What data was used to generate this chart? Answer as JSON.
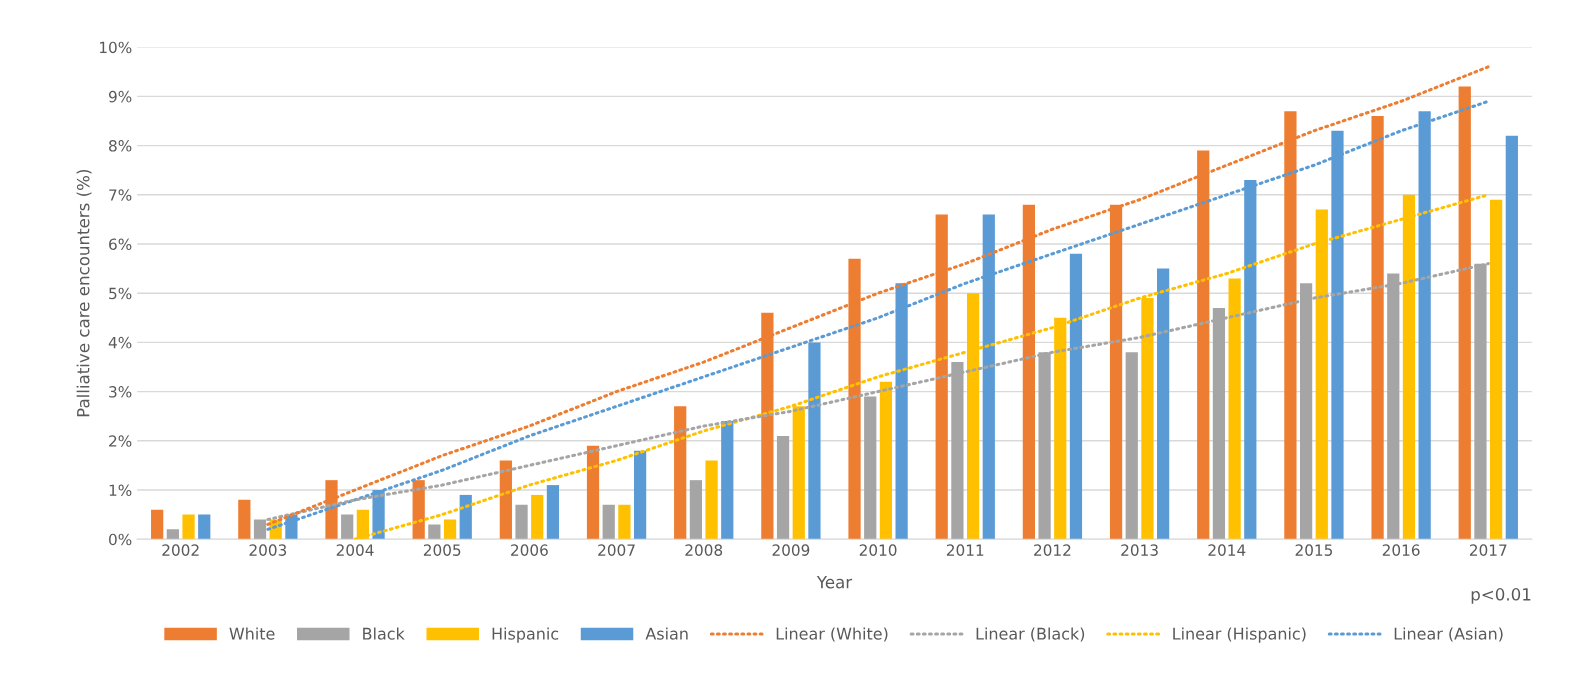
{
  "chart_data": {
    "type": "bar",
    "xlabel": "Year",
    "ylabel": "Palliative care encounters (%)",
    "categories": [
      "2002",
      "2003",
      "2004",
      "2005",
      "2006",
      "2007",
      "2008",
      "2009",
      "2010",
      "2011",
      "2012",
      "2013",
      "2014",
      "2015",
      "2016",
      "2017"
    ],
    "series": [
      {
        "name": "White",
        "color": "#ed7d31",
        "values": [
          0.6,
          0.8,
          1.2,
          1.2,
          1.6,
          1.9,
          2.7,
          4.6,
          5.7,
          6.6,
          6.8,
          6.8,
          7.9,
          8.7,
          8.6,
          9.2
        ]
      },
      {
        "name": "Black",
        "color": "#a5a5a5",
        "values": [
          0.2,
          0.4,
          0.5,
          0.3,
          0.7,
          0.7,
          1.2,
          2.1,
          2.9,
          3.6,
          3.8,
          3.8,
          4.7,
          5.2,
          5.4,
          5.6
        ]
      },
      {
        "name": "Hispanic",
        "color": "#ffc000",
        "values": [
          0.5,
          0.4,
          0.6,
          0.4,
          0.9,
          0.7,
          1.6,
          2.7,
          3.2,
          5.0,
          4.5,
          4.9,
          5.3,
          6.7,
          7.0,
          6.9
        ]
      },
      {
        "name": "Asian",
        "color": "#5b9bd5",
        "values": [
          0.5,
          0.5,
          1.0,
          0.9,
          1.1,
          1.8,
          2.4,
          4.0,
          5.2,
          6.6,
          5.8,
          5.5,
          7.3,
          8.3,
          8.7,
          8.2
        ]
      },
      {
        "name": "Linear (White)",
        "type": "line",
        "line_style": "dotted",
        "color": "#ed7d31",
        "values": [
          null,
          0.3,
          1.0,
          1.7,
          2.3,
          3.0,
          3.6,
          4.3,
          5.0,
          5.6,
          6.3,
          6.9,
          7.6,
          8.3,
          8.9,
          9.6
        ]
      },
      {
        "name": "Linear (Black)",
        "type": "line",
        "line_style": "dotted",
        "color": "#a5a5a5",
        "values": [
          null,
          0.4,
          0.8,
          1.1,
          1.5,
          1.9,
          2.3,
          2.6,
          3.0,
          3.4,
          3.8,
          4.1,
          4.5,
          4.9,
          5.2,
          5.6
        ]
      },
      {
        "name": "Linear (Hispanic)",
        "type": "line",
        "line_style": "dotted",
        "color": "#ffc000",
        "values": [
          null,
          null,
          0.0,
          0.5,
          1.1,
          1.6,
          2.2,
          2.7,
          3.3,
          3.8,
          4.3,
          4.9,
          5.4,
          6.0,
          6.5,
          7.0
        ]
      },
      {
        "name": "Linear (Asian)",
        "type": "line",
        "line_style": "dotted",
        "color": "#5b9bd5",
        "values": [
          null,
          0.2,
          0.8,
          1.4,
          2.1,
          2.7,
          3.3,
          3.9,
          4.5,
          5.2,
          5.8,
          6.4,
          7.0,
          7.6,
          8.3,
          8.9
        ]
      }
    ],
    "ylim": [
      0,
      10
    ],
    "yticks": [
      {
        "value": 0,
        "label": "0%"
      },
      {
        "value": 1,
        "label": "1%"
      },
      {
        "value": 2,
        "label": "2%"
      },
      {
        "value": 3,
        "label": "3%"
      },
      {
        "value": 4,
        "label": "4%"
      },
      {
        "value": 5,
        "label": "5%"
      },
      {
        "value": 6,
        "label": "6%"
      },
      {
        "value": 7,
        "label": "7%"
      },
      {
        "value": 8,
        "label": "8%"
      },
      {
        "value": 9,
        "label": "9%"
      },
      {
        "value": 10,
        "label": "10%"
      }
    ],
    "grid": "y",
    "legend": "bottom",
    "annotations": [
      "p<0.01"
    ]
  }
}
